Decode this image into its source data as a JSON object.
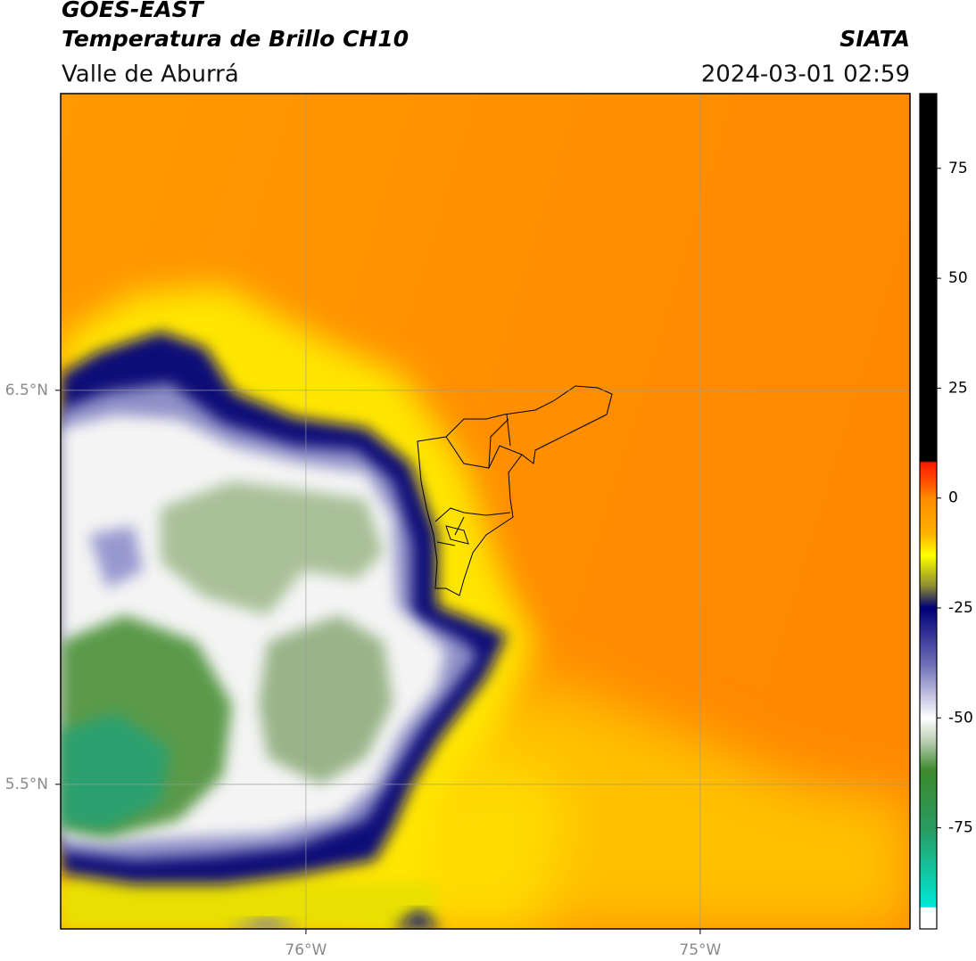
{
  "header": {
    "title": "GOES-EAST",
    "subtitle": "Temperatura de Brillo CH10",
    "region": "Valle de Aburrá",
    "source": "SIATA",
    "timestamp": "2024-03-01 02:59"
  },
  "map": {
    "lon_extent": [
      -76.622,
      -74.468
    ],
    "lat_extent": [
      5.133,
      7.253
    ],
    "lon_ticks": [
      {
        "value": -76,
        "label": "76°W"
      },
      {
        "value": -75,
        "label": "75°W"
      }
    ],
    "lat_ticks": [
      {
        "value": 6.5,
        "label": "6.5°N"
      },
      {
        "value": 5.5,
        "label": "5.5°N"
      }
    ]
  },
  "colorbar": {
    "lim": [
      -98,
      92
    ],
    "ticks": [
      75,
      50,
      25,
      0,
      -25,
      -50,
      -75
    ],
    "stops": [
      {
        "value": 92,
        "color": "#000000"
      },
      {
        "value": 8.5,
        "color": "#000000"
      },
      {
        "value": 8,
        "color": "#ff1a00"
      },
      {
        "value": 3,
        "color": "#ff5a00"
      },
      {
        "value": 0,
        "color": "#ff8c00"
      },
      {
        "value": -8,
        "color": "#ffb000"
      },
      {
        "value": -13,
        "color": "#ffff00"
      },
      {
        "value": -20,
        "color": "#8c8c30"
      },
      {
        "value": -25,
        "color": "#000078"
      },
      {
        "value": -38,
        "color": "#7070b8"
      },
      {
        "value": -50,
        "color": "#ffffff"
      },
      {
        "value": -55,
        "color": "#c0d0b8"
      },
      {
        "value": -62,
        "color": "#3c8a2c"
      },
      {
        "value": -75,
        "color": "#2a9a60"
      },
      {
        "value": -93,
        "color": "#00e8d8"
      },
      {
        "value": -93.2,
        "color": "#ffffff"
      },
      {
        "value": -98,
        "color": "#ffffff"
      }
    ]
  }
}
